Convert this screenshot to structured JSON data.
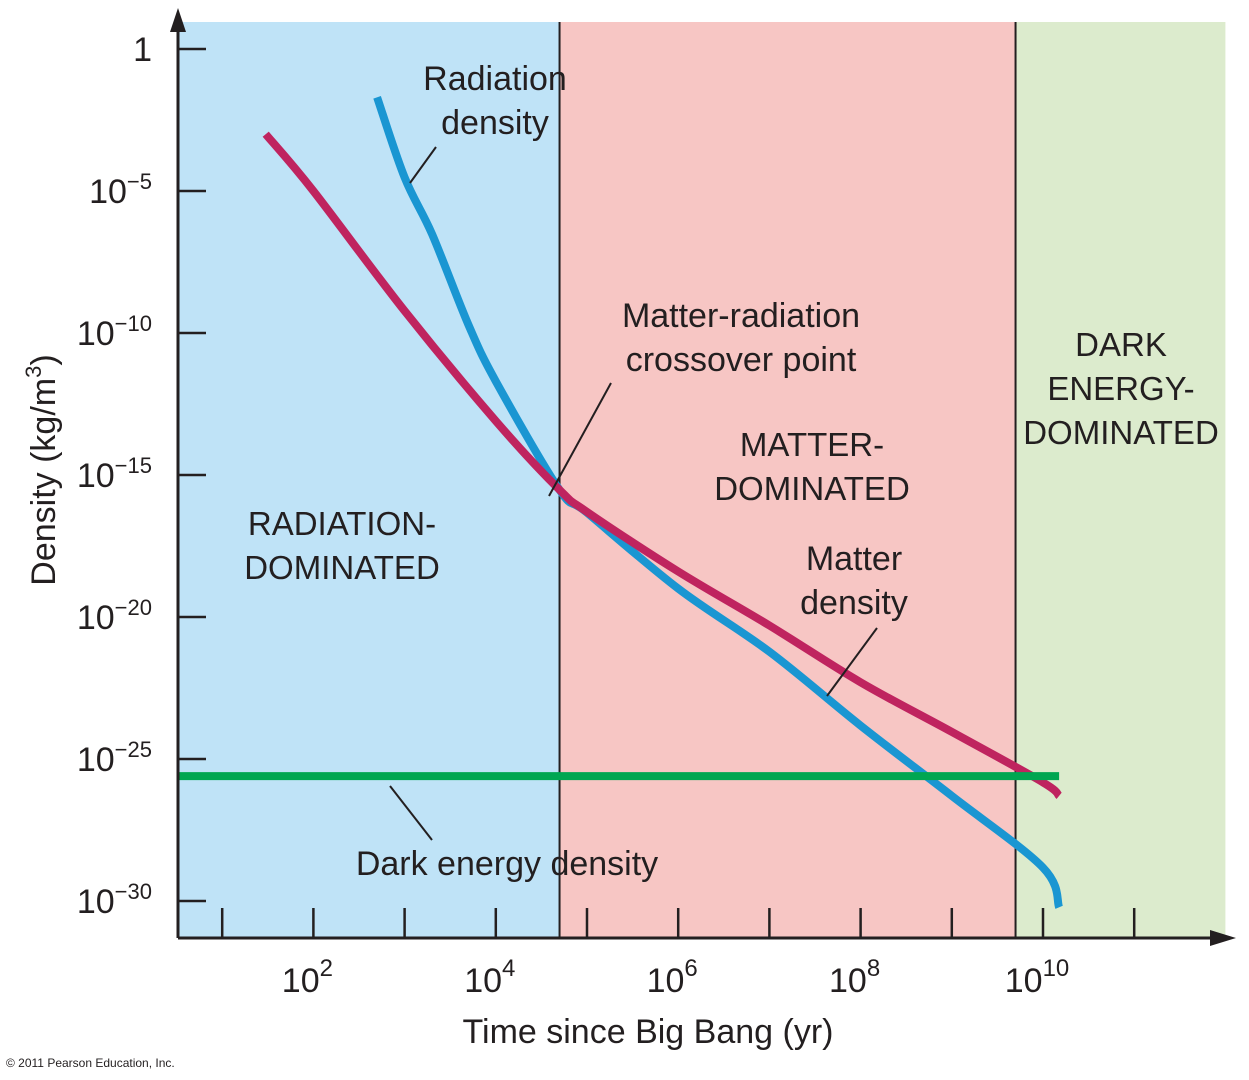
{
  "chart_data": {
    "type": "line",
    "title": "",
    "xlabel": "Time since Big Bang (yr)",
    "ylabel": "Density (kg/m",
    "ylabel_superscript": "3",
    "ylabel_close": ")",
    "x_scale": "log",
    "y_scale": "log",
    "x_ticks": [
      {
        "value": 100,
        "base": "10",
        "exp": "2"
      },
      {
        "value": 10000,
        "base": "10",
        "exp": "4"
      },
      {
        "value": 1000000,
        "base": "10",
        "exp": "6"
      },
      {
        "value": 100000000,
        "base": "10",
        "exp": "8"
      },
      {
        "value": 10000000000,
        "base": "10",
        "exp": "10"
      }
    ],
    "x_minor_ticks": [
      10,
      1000,
      100000,
      10000000,
      1000000000,
      100000000000
    ],
    "y_ticks": [
      {
        "value": 1,
        "base": "1",
        "exp": ""
      },
      {
        "value": 1e-05,
        "base": "10",
        "exp": "−5"
      },
      {
        "value": 1e-10,
        "base": "10",
        "exp": "−10"
      },
      {
        "value": 1e-15,
        "base": "10",
        "exp": "−15"
      },
      {
        "value": 1e-20,
        "base": "10",
        "exp": "−20"
      },
      {
        "value": 1e-25,
        "base": "10",
        "exp": "−25"
      },
      {
        "value": 1e-30,
        "base": "10",
        "exp": "−30"
      }
    ],
    "regions": [
      {
        "lines": [
          "RADIATION-",
          "DOMINATED"
        ],
        "from": 1,
        "to": 50000,
        "color": "#bfe3f7"
      },
      {
        "lines": [
          "MATTER-",
          "DOMINATED"
        ],
        "from": 50000,
        "to": 5000000000,
        "color": "#f7c6c4"
      },
      {
        "lines": [
          "DARK",
          "ENERGY-",
          "DOMINATED"
        ],
        "from": 5000000000,
        "to": 1000000000000,
        "color": "#dcebcd"
      }
    ],
    "series": [
      {
        "name": "Radiation density",
        "color": "#1a96d2",
        "points": [
          [
            500,
            0.02
          ],
          [
            1000,
            3e-05
          ],
          [
            2000,
            3e-07
          ],
          [
            5000,
            2e-10
          ],
          [
            10000,
            2e-12
          ],
          [
            50000,
            3e-16
          ],
          [
            100000,
            4.7e-17
          ],
          [
            1000000,
            1e-19
          ],
          [
            10000000,
            6e-22
          ],
          [
            100000000,
            1.5e-24
          ],
          [
            1000000000,
            5e-27
          ],
          [
            10000000000,
            1.5e-29
          ],
          [
            15000000000,
            6e-31
          ]
        ]
      },
      {
        "name": "Matter density",
        "color": "#bf245f",
        "points": [
          [
            30,
            0.001
          ],
          [
            100,
            1e-05
          ],
          [
            1000,
            6e-10
          ],
          [
            10000,
            8e-14
          ],
          [
            50000,
            3e-16
          ],
          [
            100000,
            5e-17
          ],
          [
            1000000,
            4e-19
          ],
          [
            10000000,
            5e-21
          ],
          [
            100000000,
            5e-23
          ],
          [
            1000000000,
            9e-25
          ],
          [
            10000000000,
            1.5e-26
          ],
          [
            15000000000,
            5e-27
          ]
        ]
      },
      {
        "name": "Dark energy density",
        "color": "#00a651",
        "points": [
          [
            1,
            2.5e-26
          ],
          [
            15000000000,
            2.5e-26
          ]
        ]
      }
    ],
    "annotations": [
      {
        "lines": [
          "Radiation",
          "density"
        ]
      },
      {
        "lines": [
          "Matter-radiation",
          "crossover point"
        ]
      },
      {
        "lines": [
          "Matter",
          "density"
        ]
      },
      {
        "lines": [
          "Dark energy density"
        ]
      }
    ],
    "grid": false,
    "legend": "none"
  },
  "copyright": "© 2011 Pearson Education, Inc."
}
